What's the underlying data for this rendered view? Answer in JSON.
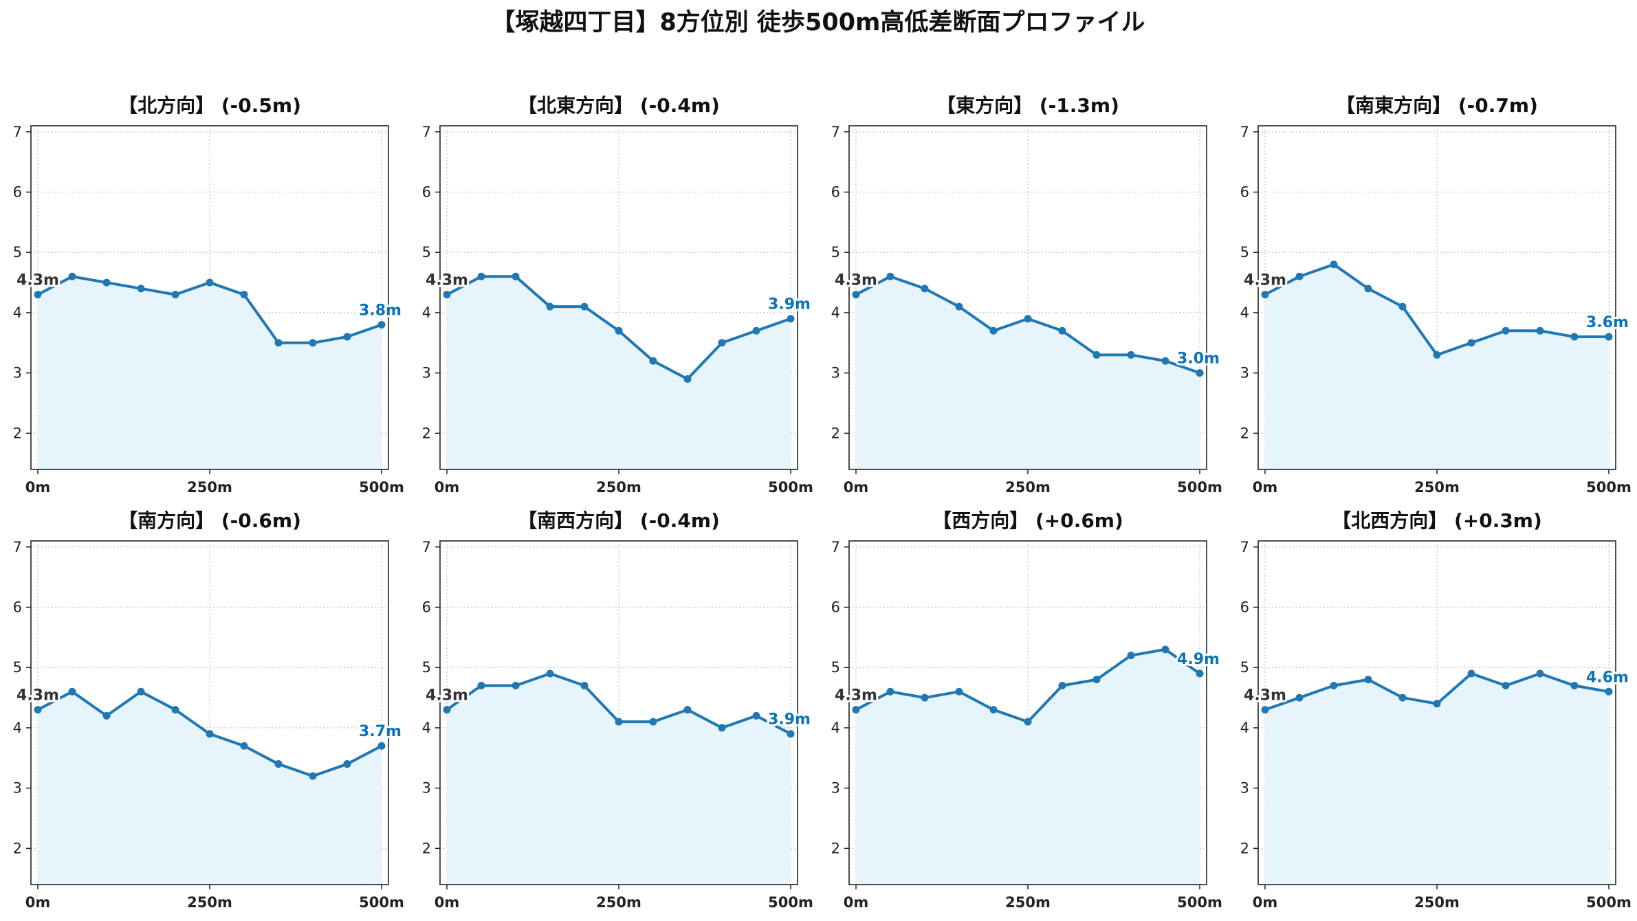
{
  "title": "【塚越四丁目】8方位別 徒歩500m高低差断面プロファイル",
  "colors": {
    "line": "#1f77b4",
    "accent": "#0a73b7",
    "fill": "#e6f4fb",
    "grid": "#c8c8c8"
  },
  "chart_data": [
    {
      "type": "line",
      "title": "【北方向】 (-0.5m)",
      "x": [
        0,
        50,
        100,
        150,
        200,
        250,
        300,
        350,
        400,
        450,
        500
      ],
      "values": [
        4.3,
        4.6,
        4.5,
        4.4,
        4.3,
        4.5,
        4.3,
        3.5,
        3.5,
        3.6,
        3.8
      ],
      "start_label": "4.3m",
      "end_label": "3.8m",
      "xticks": [
        "0m",
        "250m",
        "500m"
      ],
      "yticks": [
        "2",
        "3",
        "4",
        "5",
        "6",
        "7"
      ],
      "ylim": [
        1.4,
        7.1
      ],
      "xlim": [
        -10,
        510
      ],
      "grid": true
    },
    {
      "type": "line",
      "title": "【北東方向】 (-0.4m)",
      "x": [
        0,
        50,
        100,
        150,
        200,
        250,
        300,
        350,
        400,
        450,
        500
      ],
      "values": [
        4.3,
        4.6,
        4.6,
        4.1,
        4.1,
        3.7,
        3.2,
        2.9,
        3.5,
        3.7,
        3.9
      ],
      "start_label": "4.3m",
      "end_label": "3.9m",
      "xticks": [
        "0m",
        "250m",
        "500m"
      ],
      "yticks": [
        "2",
        "3",
        "4",
        "5",
        "6",
        "7"
      ],
      "ylim": [
        1.4,
        7.1
      ],
      "xlim": [
        -10,
        510
      ],
      "grid": true
    },
    {
      "type": "line",
      "title": "【東方向】 (-1.3m)",
      "x": [
        0,
        50,
        100,
        150,
        200,
        250,
        300,
        350,
        400,
        450,
        500
      ],
      "values": [
        4.3,
        4.6,
        4.4,
        4.1,
        3.7,
        3.9,
        3.7,
        3.3,
        3.3,
        3.2,
        3.0
      ],
      "start_label": "4.3m",
      "end_label": "3.0m",
      "xticks": [
        "0m",
        "250m",
        "500m"
      ],
      "yticks": [
        "2",
        "3",
        "4",
        "5",
        "6",
        "7"
      ],
      "ylim": [
        1.4,
        7.1
      ],
      "xlim": [
        -10,
        510
      ],
      "grid": true
    },
    {
      "type": "line",
      "title": "【南東方向】 (-0.7m)",
      "x": [
        0,
        50,
        100,
        150,
        200,
        250,
        300,
        350,
        400,
        450,
        500
      ],
      "values": [
        4.3,
        4.6,
        4.8,
        4.4,
        4.1,
        3.3,
        3.5,
        3.7,
        3.7,
        3.6,
        3.6
      ],
      "start_label": "4.3m",
      "end_label": "3.6m",
      "xticks": [
        "0m",
        "250m",
        "500m"
      ],
      "yticks": [
        "2",
        "3",
        "4",
        "5",
        "6",
        "7"
      ],
      "ylim": [
        1.4,
        7.1
      ],
      "xlim": [
        -10,
        510
      ],
      "grid": true
    },
    {
      "type": "line",
      "title": "【南方向】 (-0.6m)",
      "x": [
        0,
        50,
        100,
        150,
        200,
        250,
        300,
        350,
        400,
        450,
        500
      ],
      "values": [
        4.3,
        4.6,
        4.2,
        4.6,
        4.3,
        3.9,
        3.7,
        3.4,
        3.2,
        3.4,
        3.7
      ],
      "start_label": "4.3m",
      "end_label": "3.7m",
      "xticks": [
        "0m",
        "250m",
        "500m"
      ],
      "yticks": [
        "2",
        "3",
        "4",
        "5",
        "6",
        "7"
      ],
      "ylim": [
        1.4,
        7.1
      ],
      "xlim": [
        -10,
        510
      ],
      "grid": true
    },
    {
      "type": "line",
      "title": "【南西方向】 (-0.4m)",
      "x": [
        0,
        50,
        100,
        150,
        200,
        250,
        300,
        350,
        400,
        450,
        500
      ],
      "values": [
        4.3,
        4.7,
        4.7,
        4.9,
        4.7,
        4.1,
        4.1,
        4.3,
        4.0,
        4.2,
        3.9
      ],
      "start_label": "4.3m",
      "end_label": "3.9m",
      "xticks": [
        "0m",
        "250m",
        "500m"
      ],
      "yticks": [
        "2",
        "3",
        "4",
        "5",
        "6",
        "7"
      ],
      "ylim": [
        1.4,
        7.1
      ],
      "xlim": [
        -10,
        510
      ],
      "grid": true
    },
    {
      "type": "line",
      "title": "【西方向】 (+0.6m)",
      "x": [
        0,
        50,
        100,
        150,
        200,
        250,
        300,
        350,
        400,
        450,
        500
      ],
      "values": [
        4.3,
        4.6,
        4.5,
        4.6,
        4.3,
        4.1,
        4.7,
        4.8,
        5.2,
        5.3,
        4.9
      ],
      "start_label": "4.3m",
      "end_label": "4.9m",
      "xticks": [
        "0m",
        "250m",
        "500m"
      ],
      "yticks": [
        "2",
        "3",
        "4",
        "5",
        "6",
        "7"
      ],
      "ylim": [
        1.4,
        7.1
      ],
      "xlim": [
        -10,
        510
      ],
      "grid": true
    },
    {
      "type": "line",
      "title": "【北西方向】 (+0.3m)",
      "x": [
        0,
        50,
        100,
        150,
        200,
        250,
        300,
        350,
        400,
        450,
        500
      ],
      "values": [
        4.3,
        4.5,
        4.7,
        4.8,
        4.5,
        4.4,
        4.9,
        4.7,
        4.9,
        4.7,
        4.6
      ],
      "start_label": "4.3m",
      "end_label": "4.6m",
      "xticks": [
        "0m",
        "250m",
        "500m"
      ],
      "yticks": [
        "2",
        "3",
        "4",
        "5",
        "6",
        "7"
      ],
      "ylim": [
        1.4,
        7.1
      ],
      "xlim": [
        -10,
        510
      ],
      "grid": true
    }
  ]
}
